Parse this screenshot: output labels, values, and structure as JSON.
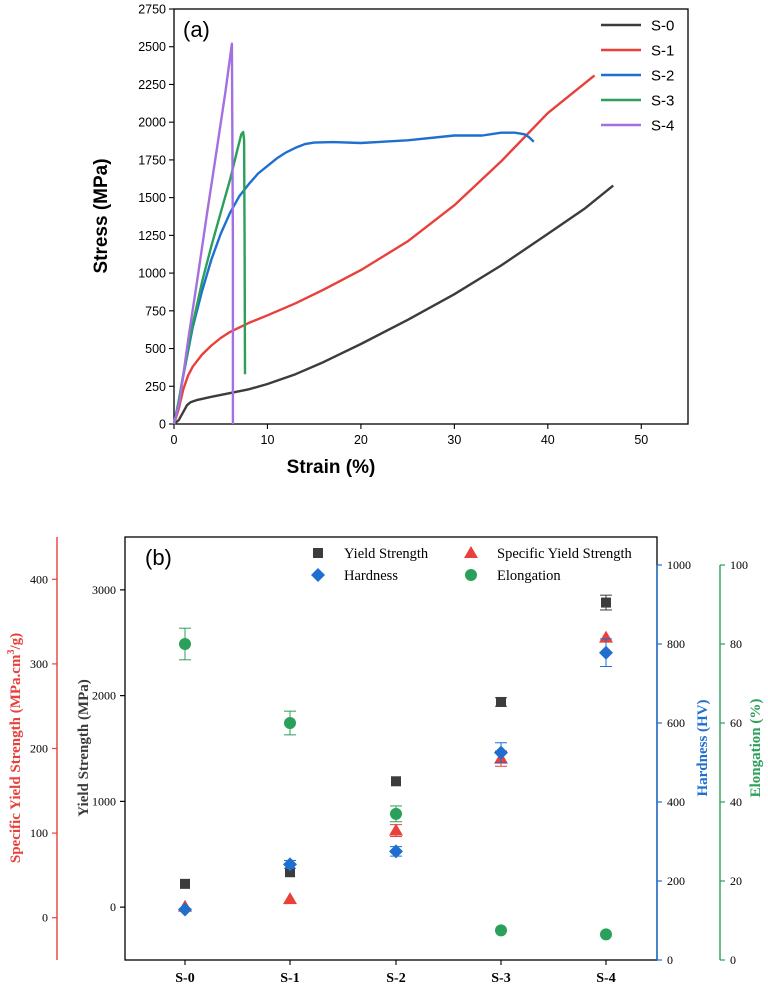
{
  "chart_data": [
    {
      "panel": "(a)",
      "type": "line",
      "xlabel": "Strain (%)",
      "ylabel": "Stress (MPa)",
      "xlim": [
        0,
        55
      ],
      "ylim": [
        0,
        2750
      ],
      "xticks": [
        0,
        10,
        20,
        30,
        40,
        50
      ],
      "xtick_labels": [
        "0",
        "10",
        "20",
        "30",
        "40",
        "50"
      ],
      "yticks": [
        0,
        250,
        500,
        750,
        1000,
        1250,
        1500,
        1750,
        2000,
        2250,
        2500,
        2750
      ],
      "ytick_labels": [
        "0",
        "250",
        "500",
        "750",
        "1000",
        "1250",
        "1500",
        "1750",
        "2000",
        "2250",
        "2500",
        "2750"
      ],
      "legend_position": "top-right",
      "series": [
        {
          "name": "S-0",
          "color": "#3c3c3c",
          "x": [
            0,
            0.5,
            1.0,
            1.4,
            1.8,
            2.5,
            4,
            6,
            8,
            10,
            13,
            16,
            20,
            25,
            30,
            35,
            40,
            44,
            47
          ],
          "y": [
            0,
            25,
            80,
            125,
            145,
            160,
            180,
            205,
            230,
            265,
            330,
            410,
            530,
            690,
            860,
            1050,
            1260,
            1430,
            1580
          ]
        },
        {
          "name": "S-1",
          "color": "#e8403a",
          "x": [
            0,
            0.5,
            1.0,
            1.5,
            2,
            3,
            4,
            5,
            6,
            8,
            10,
            13,
            16,
            20,
            25,
            30,
            35,
            40,
            45
          ],
          "y": [
            0,
            100,
            230,
            320,
            380,
            460,
            520,
            570,
            610,
            670,
            720,
            800,
            890,
            1020,
            1210,
            1450,
            1740,
            2060,
            2310
          ]
        },
        {
          "name": "S-2",
          "color": "#1f6fd0",
          "x": [
            0,
            0.5,
            1,
            2,
            3,
            4,
            5,
            6,
            7,
            8,
            9,
            10,
            11,
            12,
            13,
            14,
            15,
            17,
            20,
            25,
            30,
            33,
            35,
            36.5,
            37.5,
            38,
            38.5
          ],
          "y": [
            0,
            150,
            320,
            640,
            880,
            1090,
            1260,
            1400,
            1510,
            1590,
            1660,
            1710,
            1760,
            1800,
            1830,
            1855,
            1865,
            1868,
            1862,
            1880,
            1912,
            1912,
            1930,
            1930,
            1920,
            1900,
            1870
          ]
        },
        {
          "name": "S-3",
          "color": "#2aa05a",
          "x": [
            0,
            0.5,
            1,
            2,
            3,
            4,
            5,
            6,
            6.8,
            7.2,
            7.4,
            7.5,
            7.55,
            7.6
          ],
          "y": [
            0,
            150,
            330,
            660,
            940,
            1180,
            1400,
            1620,
            1820,
            1920,
            1935,
            1880,
            1200,
            330
          ]
        },
        {
          "name": "S-4",
          "color": "#a46fdf",
          "x": [
            0,
            0.6,
            1.5,
            2.5,
            3.5,
            4.5,
            5.5,
            6.2,
            6.3,
            6.3
          ],
          "y": [
            0,
            150,
            550,
            960,
            1380,
            1790,
            2200,
            2520,
            1200,
            0
          ]
        }
      ]
    },
    {
      "panel": "(b)",
      "type": "scatter",
      "categories": [
        "S-0",
        "S-1",
        "S-2",
        "S-3",
        "S-4"
      ],
      "legend_position": "top-right",
      "axes": {
        "specific": {
          "label": "Specific Yield Strength (MPa.cm³/g)",
          "color": "#e8403a",
          "ylim": [
            -50,
            450
          ],
          "ticks": [
            0,
            100,
            200,
            300,
            400
          ],
          "tick_labels": [
            "0",
            "100",
            "200",
            "300",
            "400"
          ]
        },
        "yield": {
          "label": "Yield Strength (MPa)",
          "color": "#3c3c3c",
          "ylim": [
            -500,
            3500
          ],
          "ticks": [
            0,
            1000,
            2000,
            3000
          ],
          "tick_labels": [
            "0",
            "1000",
            "2000",
            "3000"
          ]
        },
        "hardness": {
          "label": "Hardness (HV)",
          "color": "#1f6fd0",
          "ylim": [
            0,
            1000
          ],
          "ticks": [
            0,
            200,
            400,
            600,
            800,
            1000
          ],
          "tick_labels": [
            "0",
            "200",
            "400",
            "600",
            "800",
            "1000"
          ]
        },
        "elongation": {
          "label": "Elongation (%)",
          "color": "#2aa05a",
          "ylim": [
            0,
            100
          ],
          "ticks": [
            0,
            20,
            40,
            60,
            80,
            100
          ],
          "tick_labels": [
            "0",
            "20",
            "40",
            "60",
            "80",
            "100"
          ]
        }
      },
      "series": [
        {
          "name": "Yield Strength",
          "axis": "yield",
          "marker": "square",
          "color": "#3c3c3c",
          "values": [
            220,
            330,
            1190,
            1940,
            2880
          ],
          "errors": [
            0,
            0,
            0,
            40,
            70
          ]
        },
        {
          "name": "Specific Yield Strength",
          "axis": "specific",
          "marker": "triangle",
          "color": "#e8403a",
          "values": [
            13,
            22,
            103,
            188,
            331
          ],
          "errors": [
            0,
            0,
            7,
            9,
            0
          ]
        },
        {
          "name": "Hardness",
          "axis": "hardness",
          "marker": "diamond",
          "color": "#1f6fd0",
          "values": [
            128,
            242,
            275,
            525,
            778
          ],
          "errors": [
            0,
            10,
            12,
            25,
            35
          ]
        },
        {
          "name": "Elongation",
          "axis": "elongation",
          "marker": "circle",
          "color": "#2aa05a",
          "values": [
            80,
            60,
            37,
            7.5,
            6.5
          ],
          "errors": [
            4,
            3,
            2,
            0,
            0
          ]
        }
      ]
    }
  ]
}
